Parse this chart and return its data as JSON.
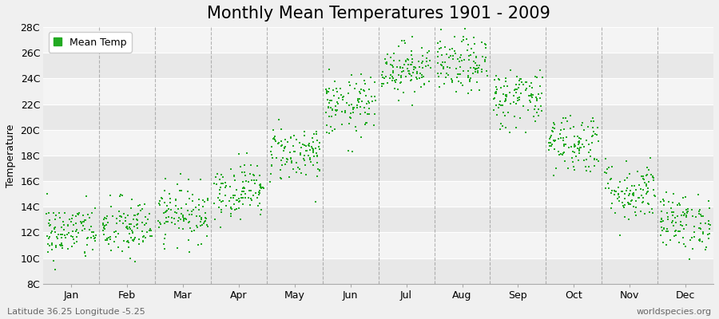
{
  "title": "Monthly Mean Temperatures 1901 - 2009",
  "ylabel": "Temperature",
  "subtitle_left": "Latitude 36.25 Longitude -5.25",
  "subtitle_right": "worldspecies.org",
  "ytick_labels": [
    "8C",
    "10C",
    "12C",
    "14C",
    "16C",
    "18C",
    "20C",
    "22C",
    "24C",
    "26C",
    "28C"
  ],
  "ytick_values": [
    8,
    10,
    12,
    14,
    16,
    18,
    20,
    22,
    24,
    26,
    28
  ],
  "ylim": [
    8,
    28
  ],
  "month_labels": [
    "Jan",
    "Feb",
    "Mar",
    "Apr",
    "May",
    "Jun",
    "Jul",
    "Aug",
    "Sep",
    "Oct",
    "Nov",
    "Dec"
  ],
  "dot_color": "#22aa22",
  "background_color": "#f0f0f0",
  "stripe_colors": [
    "#e8e8e8",
    "#f4f4f4"
  ],
  "grid_color": "#ffffff",
  "dashed_line_color": "#888888",
  "legend_label": "Mean Temp",
  "monthly_mean_temps": [
    12.0,
    12.3,
    13.5,
    15.3,
    18.2,
    21.8,
    24.8,
    25.0,
    22.5,
    19.0,
    15.2,
    12.8
  ],
  "monthly_std_temps": [
    1.1,
    1.2,
    1.1,
    1.1,
    1.1,
    1.2,
    1.0,
    1.1,
    1.2,
    1.2,
    1.2,
    1.1
  ],
  "n_years": 109,
  "title_fontsize": 15,
  "axis_fontsize": 9,
  "tick_fontsize": 9,
  "dot_size": 3
}
